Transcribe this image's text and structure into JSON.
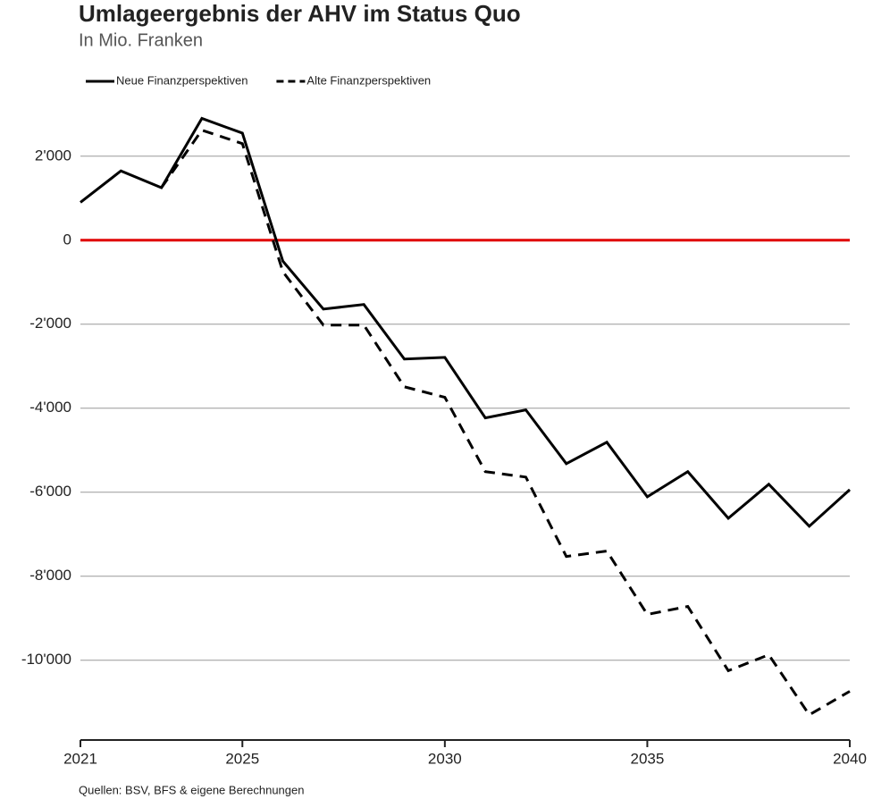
{
  "chart_data": {
    "type": "line",
    "title": "Umlageergebnis der AHV im Status Quo",
    "subtitle": "In Mio. Franken",
    "source": "Quellen: BSV, BFS & eigene Berechnungen",
    "x": [
      2021,
      2022,
      2023,
      2024,
      2025,
      2026,
      2027,
      2028,
      2029,
      2030,
      2031,
      2032,
      2033,
      2034,
      2035,
      2036,
      2037,
      2038,
      2039,
      2040
    ],
    "series": [
      {
        "name": "Neue Finanzperspektiven",
        "color": "#000000",
        "line_style": "solid",
        "values": [
          900,
          1650,
          1250,
          2900,
          2550,
          -500,
          -1640,
          -1530,
          -2830,
          -2790,
          -4230,
          -4040,
          -5320,
          -4810,
          -6110,
          -5510,
          -6620,
          -5810,
          -6810,
          -5940
        ]
      },
      {
        "name": "Alte Finanzperspektiven",
        "color": "#000000",
        "line_style": "dashed",
        "values": [
          null,
          null,
          1250,
          2620,
          2300,
          -750,
          -2020,
          -2020,
          -3490,
          -3740,
          -5510,
          -5640,
          -7530,
          -7400,
          -8910,
          -8720,
          -10250,
          -9870,
          -11300,
          -10740
        ]
      }
    ],
    "xlim": [
      2021,
      2040
    ],
    "xticks": [
      2021,
      2025,
      2030,
      2035,
      2040
    ],
    "ylim": [
      -11900,
      3400
    ],
    "yticks": [
      {
        "value": 2000,
        "label": "2'000"
      },
      0,
      {
        "value": -2000,
        "label": "-2'000"
      },
      {
        "value": -4000,
        "label": "-4'000"
      },
      {
        "value": -6000,
        "label": "-6'000"
      },
      {
        "value": -8000,
        "label": "-8'000"
      },
      {
        "value": -10000,
        "label": "-10'000"
      }
    ],
    "grid": true,
    "zero_line_color": "#e00000",
    "legend": "top-left"
  }
}
